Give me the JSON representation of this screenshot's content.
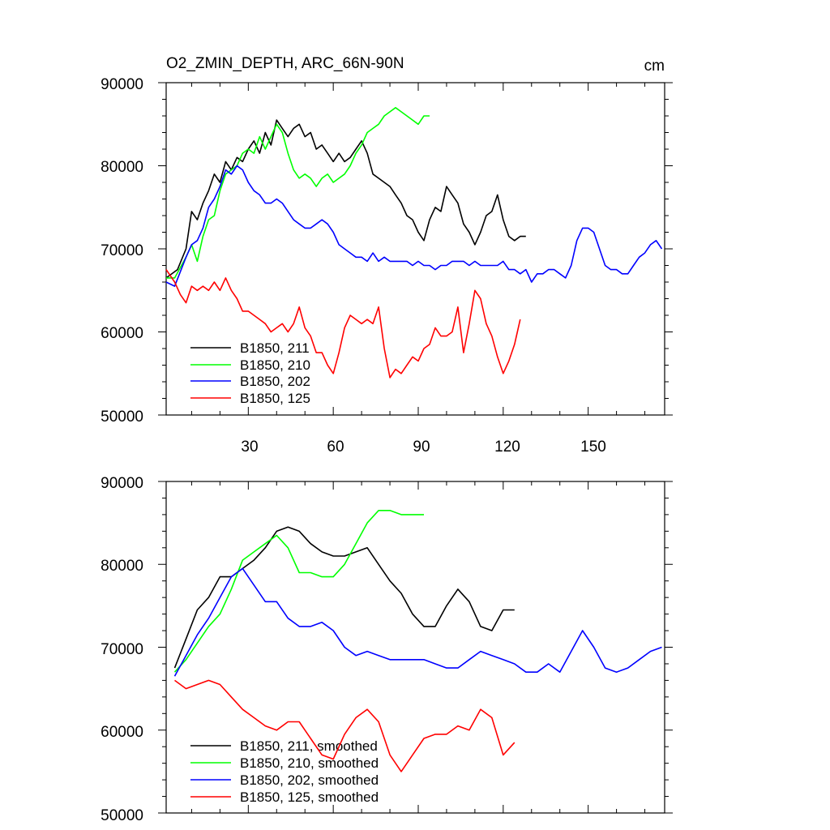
{
  "chart_data": [
    {
      "type": "line",
      "title": "O2_ZMIN_DEPTH, ARC_66N-90N",
      "units": "cm",
      "xlim": [
        1,
        177
      ],
      "ylim": [
        50000,
        90000
      ],
      "xticks": [
        30,
        60,
        90,
        120,
        150
      ],
      "yticks": [
        50000,
        60000,
        70000,
        80000,
        90000
      ],
      "xtick_labels": [
        "30",
        "60",
        "90",
        "120",
        "150"
      ],
      "ytick_labels": [
        "50000",
        "60000",
        "70000",
        "80000",
        "90000"
      ],
      "legend_position": "bottom-left",
      "series": [
        {
          "name": "B1850, 211",
          "color": "#000000",
          "x": [
            1,
            5,
            8,
            10,
            12,
            14,
            16,
            18,
            20,
            22,
            24,
            26,
            28,
            30,
            32,
            34,
            36,
            38,
            40,
            42,
            44,
            46,
            48,
            50,
            52,
            54,
            56,
            58,
            60,
            62,
            64,
            66,
            68,
            70,
            72,
            74,
            76,
            78,
            80,
            82,
            84,
            86,
            88,
            90,
            92,
            94,
            96,
            98,
            100,
            102,
            104,
            106,
            108,
            110,
            112,
            114,
            116,
            118,
            120,
            122,
            124,
            126,
            128
          ],
          "y": [
            66500,
            67500,
            70000,
            74500,
            73500,
            75500,
            77000,
            79000,
            78000,
            80500,
            79500,
            81000,
            80500,
            82000,
            83000,
            81500,
            84000,
            82500,
            85500,
            84500,
            83500,
            84500,
            85000,
            83500,
            84000,
            82000,
            82500,
            81500,
            80500,
            81500,
            80500,
            81000,
            82000,
            83000,
            81500,
            79000,
            78500,
            78000,
            77500,
            76500,
            75500,
            74000,
            73500,
            72000,
            71000,
            73500,
            75000,
            74500,
            77500,
            76500,
            75500,
            73000,
            72000,
            70500,
            72000,
            74000,
            74500,
            76500,
            73500,
            71500,
            71000,
            71500,
            71500
          ]
        },
        {
          "name": "B1850, 210",
          "color": "#00ff00",
          "x": [
            1,
            4,
            8,
            10,
            12,
            14,
            16,
            18,
            20,
            22,
            24,
            26,
            28,
            30,
            32,
            34,
            36,
            38,
            40,
            42,
            44,
            46,
            48,
            50,
            52,
            54,
            56,
            58,
            60,
            62,
            64,
            66,
            68,
            70,
            72,
            74,
            76,
            78,
            80,
            82,
            84,
            86,
            88,
            90,
            92,
            94
          ],
          "y": [
            66500,
            66500,
            69000,
            70500,
            68500,
            71500,
            73500,
            74000,
            77000,
            79000,
            79500,
            80000,
            81500,
            82000,
            81500,
            83500,
            82000,
            83500,
            85000,
            84000,
            81500,
            79500,
            78500,
            79000,
            78500,
            77500,
            78500,
            79000,
            78000,
            78500,
            79000,
            80000,
            81500,
            82500,
            84000,
            84500,
            85000,
            86000,
            86500,
            87000,
            86500,
            86000,
            85500,
            85000,
            86000,
            86000
          ]
        },
        {
          "name": "B1850, 202",
          "color": "#0000ff",
          "x": [
            1,
            4,
            8,
            10,
            12,
            14,
            16,
            18,
            20,
            22,
            24,
            26,
            28,
            30,
            32,
            34,
            36,
            38,
            40,
            42,
            44,
            46,
            48,
            50,
            52,
            54,
            56,
            58,
            60,
            62,
            64,
            66,
            68,
            70,
            72,
            74,
            76,
            78,
            80,
            82,
            84,
            86,
            88,
            90,
            92,
            94,
            96,
            98,
            100,
            102,
            104,
            106,
            108,
            110,
            112,
            114,
            116,
            118,
            120,
            122,
            124,
            126,
            128,
            130,
            132,
            134,
            136,
            138,
            140,
            142,
            144,
            146,
            148,
            150,
            152,
            154,
            156,
            158,
            160,
            162,
            164,
            166,
            168,
            170,
            172,
            174,
            176
          ],
          "y": [
            66000,
            65500,
            69000,
            70500,
            71000,
            72500,
            75000,
            76000,
            77500,
            79500,
            79000,
            80000,
            79500,
            78000,
            77000,
            76500,
            75500,
            75500,
            76000,
            75500,
            74500,
            73500,
            73000,
            72500,
            72500,
            73000,
            73500,
            73000,
            72000,
            70500,
            70000,
            69500,
            69000,
            69000,
            68500,
            69500,
            68500,
            69000,
            68500,
            68500,
            68500,
            68500,
            68000,
            68500,
            68000,
            68000,
            67500,
            68000,
            68000,
            68500,
            68500,
            68500,
            68000,
            68500,
            68000,
            68000,
            68000,
            68000,
            68500,
            67500,
            67500,
            67000,
            67500,
            66000,
            67000,
            67000,
            67500,
            67500,
            67000,
            66500,
            68000,
            71000,
            72500,
            72500,
            72000,
            70000,
            68000,
            67500,
            67500,
            67000,
            67000,
            68000,
            69000,
            69500,
            70500,
            71000,
            70000
          ]
        },
        {
          "name": "B1850, 125",
          "color": "#ff0000",
          "x": [
            1,
            4,
            6,
            8,
            10,
            12,
            14,
            16,
            18,
            20,
            22,
            24,
            26,
            28,
            30,
            32,
            34,
            36,
            38,
            40,
            42,
            44,
            46,
            48,
            50,
            52,
            54,
            56,
            58,
            60,
            62,
            64,
            66,
            68,
            70,
            72,
            74,
            76,
            78,
            80,
            82,
            84,
            86,
            88,
            90,
            92,
            94,
            96,
            98,
            100,
            102,
            104,
            106,
            108,
            110,
            112,
            114,
            116,
            118,
            120,
            122,
            124,
            126
          ],
          "y": [
            67500,
            66000,
            64500,
            63500,
            65500,
            65000,
            65500,
            65000,
            66000,
            65000,
            66500,
            65000,
            64000,
            62500,
            62500,
            62000,
            61500,
            61000,
            60000,
            60500,
            61000,
            60000,
            61000,
            63000,
            60500,
            59500,
            57500,
            57500,
            56000,
            55000,
            57500,
            60500,
            62000,
            61500,
            61000,
            61500,
            61000,
            63000,
            58000,
            54500,
            55500,
            55000,
            56000,
            57000,
            56500,
            58000,
            58500,
            60500,
            59500,
            59500,
            60000,
            63000,
            57500,
            61000,
            65000,
            64000,
            61000,
            59500,
            57000,
            55000,
            56500,
            58500,
            61500
          ]
        }
      ]
    },
    {
      "type": "line",
      "title": "",
      "xlim": [
        1,
        177
      ],
      "ylim": [
        50000,
        90000
      ],
      "xticks": [
        30,
        60,
        90,
        120,
        150
      ],
      "yticks": [
        50000,
        60000,
        70000,
        80000,
        90000
      ],
      "ytick_labels": [
        "50000",
        "60000",
        "70000",
        "80000",
        "90000"
      ],
      "legend_position": "bottom-left",
      "series": [
        {
          "name": "B1850, 211, smoothed",
          "color": "#000000",
          "x": [
            4,
            8,
            12,
            16,
            20,
            24,
            28,
            32,
            36,
            40,
            44,
            48,
            52,
            56,
            60,
            64,
            68,
            72,
            76,
            80,
            84,
            88,
            92,
            96,
            100,
            104,
            108,
            112,
            116,
            120,
            124
          ],
          "y": [
            67500,
            71000,
            74500,
            76000,
            78500,
            78500,
            79500,
            80500,
            82000,
            84000,
            84500,
            84000,
            82500,
            81500,
            81000,
            81000,
            81500,
            82000,
            80000,
            78000,
            76500,
            74000,
            72500,
            72500,
            75000,
            77000,
            75500,
            72500,
            72000,
            74500,
            74500
          ]
        },
        {
          "name": "B1850, 210, smoothed",
          "color": "#00ff00",
          "x": [
            4,
            8,
            12,
            16,
            20,
            24,
            28,
            32,
            36,
            40,
            44,
            48,
            52,
            56,
            60,
            64,
            68,
            72,
            76,
            80,
            84,
            88,
            92
          ],
          "y": [
            67000,
            68500,
            70500,
            72500,
            74000,
            77000,
            80500,
            81500,
            82500,
            83500,
            82000,
            79000,
            79000,
            78500,
            78500,
            80000,
            82500,
            85000,
            86500,
            86500,
            86000,
            86000,
            86000
          ]
        },
        {
          "name": "B1850, 202, smoothed",
          "color": "#0000ff",
          "x": [
            4,
            8,
            12,
            16,
            20,
            24,
            28,
            32,
            36,
            40,
            44,
            48,
            52,
            56,
            60,
            64,
            68,
            72,
            76,
            80,
            84,
            88,
            92,
            96,
            100,
            104,
            108,
            112,
            116,
            120,
            124,
            128,
            132,
            136,
            140,
            144,
            148,
            152,
            156,
            160,
            164,
            168,
            172,
            176
          ],
          "y": [
            66500,
            69000,
            71500,
            73500,
            76000,
            78500,
            79500,
            77500,
            75500,
            75500,
            73500,
            72500,
            72500,
            73000,
            72000,
            70000,
            69000,
            69500,
            69000,
            68500,
            68500,
            68500,
            68500,
            68000,
            67500,
            67500,
            68500,
            69500,
            69000,
            68500,
            68000,
            67000,
            67000,
            68000,
            67000,
            69500,
            72000,
            70000,
            67500,
            67000,
            67500,
            68500,
            69500,
            70000
          ]
        },
        {
          "name": "B1850, 125, smoothed",
          "color": "#ff0000",
          "x": [
            4,
            8,
            12,
            16,
            20,
            24,
            28,
            32,
            36,
            40,
            44,
            48,
            52,
            56,
            60,
            64,
            68,
            72,
            76,
            80,
            84,
            88,
            92,
            96,
            100,
            104,
            108,
            112,
            116,
            120,
            124
          ],
          "y": [
            66000,
            65000,
            65500,
            66000,
            65500,
            64000,
            62500,
            61500,
            60500,
            60000,
            61000,
            61000,
            59000,
            57000,
            56500,
            59500,
            61500,
            62500,
            61000,
            57000,
            55000,
            57000,
            59000,
            59500,
            59500,
            60500,
            60000,
            62500,
            61500,
            57000,
            58500
          ]
        }
      ]
    }
  ]
}
